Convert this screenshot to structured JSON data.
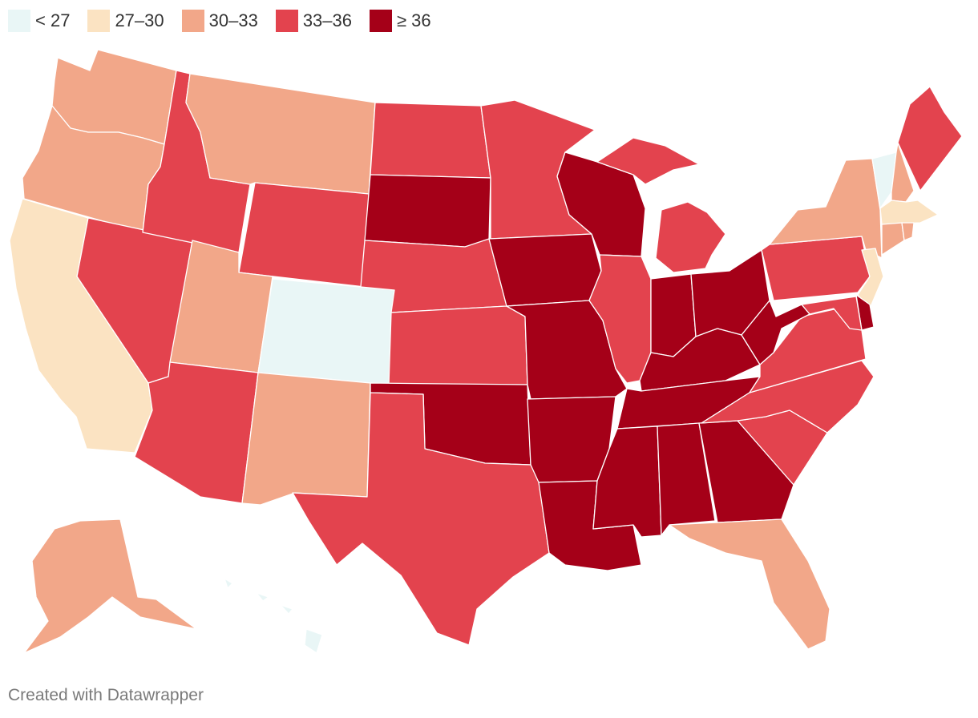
{
  "legend": {
    "items": [
      {
        "label": "< 27",
        "color": "#e9f6f6"
      },
      {
        "label": "27–30",
        "color": "#fbe3c2"
      },
      {
        "label": "30–33",
        "color": "#f2a789"
      },
      {
        "label": "33–36",
        "color": "#e3434e"
      },
      {
        "label": "≥ 36",
        "color": "#a50018"
      }
    ]
  },
  "states": [
    {
      "id": "WA",
      "cls": 2
    },
    {
      "id": "OR",
      "cls": 2
    },
    {
      "id": "CA",
      "cls": 1
    },
    {
      "id": "NV",
      "cls": 3
    },
    {
      "id": "ID",
      "cls": 3
    },
    {
      "id": "MT",
      "cls": 2
    },
    {
      "id": "WY",
      "cls": 3
    },
    {
      "id": "UT",
      "cls": 2
    },
    {
      "id": "AZ",
      "cls": 3
    },
    {
      "id": "CO",
      "cls": 0
    },
    {
      "id": "NM",
      "cls": 2
    },
    {
      "id": "ND",
      "cls": 3
    },
    {
      "id": "SD",
      "cls": 4
    },
    {
      "id": "NE",
      "cls": 3
    },
    {
      "id": "KS",
      "cls": 3
    },
    {
      "id": "OK",
      "cls": 4
    },
    {
      "id": "TX",
      "cls": 3
    },
    {
      "id": "MN",
      "cls": 3
    },
    {
      "id": "IA",
      "cls": 4
    },
    {
      "id": "MO",
      "cls": 4
    },
    {
      "id": "AR",
      "cls": 4
    },
    {
      "id": "LA",
      "cls": 4
    },
    {
      "id": "WI",
      "cls": 4
    },
    {
      "id": "IL",
      "cls": 3
    },
    {
      "id": "MI",
      "cls": 3
    },
    {
      "id": "IN",
      "cls": 4
    },
    {
      "id": "OH",
      "cls": 4
    },
    {
      "id": "KY",
      "cls": 4
    },
    {
      "id": "TN",
      "cls": 4
    },
    {
      "id": "MS",
      "cls": 4
    },
    {
      "id": "AL",
      "cls": 4
    },
    {
      "id": "GA",
      "cls": 4
    },
    {
      "id": "FL",
      "cls": 2
    },
    {
      "id": "SC",
      "cls": 3
    },
    {
      "id": "NC",
      "cls": 3
    },
    {
      "id": "VA",
      "cls": 3
    },
    {
      "id": "WV",
      "cls": 4
    },
    {
      "id": "PA",
      "cls": 3
    },
    {
      "id": "NY",
      "cls": 2
    },
    {
      "id": "VT",
      "cls": 0
    },
    {
      "id": "NH",
      "cls": 2
    },
    {
      "id": "ME",
      "cls": 3
    },
    {
      "id": "MA",
      "cls": 1
    },
    {
      "id": "CT",
      "cls": 2
    },
    {
      "id": "RI",
      "cls": 2
    },
    {
      "id": "NJ",
      "cls": 1
    },
    {
      "id": "DE",
      "cls": 4
    },
    {
      "id": "MD",
      "cls": 3
    },
    {
      "id": "AK",
      "cls": 2
    },
    {
      "id": "HI",
      "cls": 0
    }
  ],
  "footer": {
    "credit": "Created with Datawrapper"
  }
}
